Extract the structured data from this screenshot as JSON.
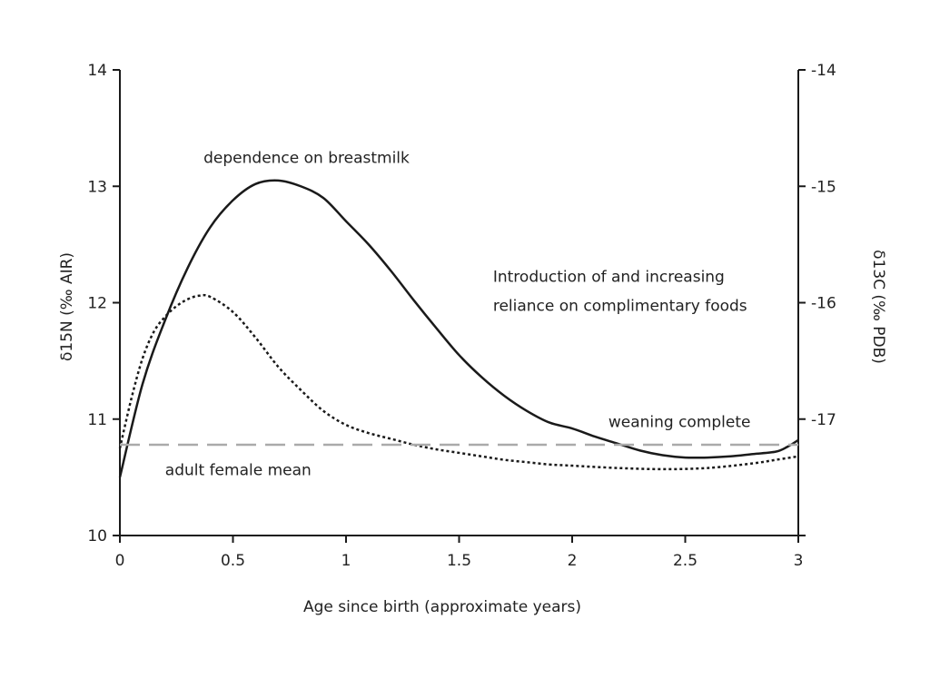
{
  "chart_data": {
    "type": "line",
    "title": "",
    "xlabel": "Age since birth (approximate years)",
    "ylabel_left": "δ15N (‰ AIR)",
    "ylabel_right": "δ13C (‰ PDB)",
    "xlim": [
      0,
      3
    ],
    "ylim_left": [
      10,
      14
    ],
    "ylim_right": [
      -18,
      -14
    ],
    "x_ticks": [
      "0",
      "0.5",
      "1",
      "1.5",
      "2",
      "2.5",
      "3"
    ],
    "y_left_ticks": [
      "10",
      "11",
      "12",
      "13",
      "14"
    ],
    "y_right_ticks": [
      "-17",
      "-16",
      "-15",
      "-14"
    ],
    "grid": false,
    "series": [
      {
        "style": "solid",
        "axis": "left",
        "color": "#1a1a1a",
        "x": [
          0,
          0.1,
          0.2,
          0.3,
          0.4,
          0.5,
          0.6,
          0.7,
          0.8,
          0.9,
          1.0,
          1.1,
          1.2,
          1.3,
          1.4,
          1.5,
          1.6,
          1.7,
          1.8,
          1.9,
          2.0,
          2.1,
          2.2,
          2.3,
          2.4,
          2.5,
          2.6,
          2.7,
          2.8,
          2.9,
          2.95,
          3.0
        ],
        "y": [
          10.5,
          11.3,
          11.85,
          12.3,
          12.65,
          12.88,
          13.02,
          13.05,
          13.0,
          12.9,
          12.7,
          12.5,
          12.27,
          12.02,
          11.78,
          11.55,
          11.36,
          11.2,
          11.07,
          10.97,
          10.92,
          10.85,
          10.79,
          10.73,
          10.69,
          10.67,
          10.67,
          10.68,
          10.7,
          10.72,
          10.76,
          10.82
        ]
      },
      {
        "style": "dotted",
        "axis": "right",
        "color": "#1a1a1a",
        "x": [
          0,
          0.05,
          0.1,
          0.15,
          0.2,
          0.25,
          0.3,
          0.35,
          0.4,
          0.5,
          0.6,
          0.7,
          0.8,
          0.9,
          1.0,
          1.1,
          1.2,
          1.3,
          1.4,
          1.5,
          1.6,
          1.7,
          1.8,
          1.9,
          2.0,
          2.2,
          2.4,
          2.6,
          2.8,
          2.9,
          3.0
        ],
        "y": [
          -17.25,
          -16.83,
          -16.48,
          -16.25,
          -16.12,
          -16.03,
          -15.97,
          -15.94,
          -15.95,
          -16.08,
          -16.3,
          -16.55,
          -16.75,
          -16.93,
          -17.05,
          -17.12,
          -17.17,
          -17.22,
          -17.26,
          -17.29,
          -17.32,
          -17.35,
          -17.37,
          -17.39,
          -17.4,
          -17.42,
          -17.43,
          -17.42,
          -17.38,
          -17.35,
          -17.32
        ]
      },
      {
        "style": "dashed",
        "axis": "left",
        "color": "#aaaaaa",
        "x": [
          0,
          3
        ],
        "y": [
          10.78,
          10.78
        ]
      }
    ],
    "annotations": [
      {
        "text": "dependence on breastmilk",
        "x": 0.37,
        "y": 13.2
      },
      {
        "text": "Introduction of and increasing",
        "x": 1.65,
        "y": 12.18
      },
      {
        "text": "reliance on complimentary foods",
        "x": 1.65,
        "y": 11.93
      },
      {
        "text": "weaning complete",
        "x": 2.16,
        "y": 10.93
      },
      {
        "text": "adult female mean",
        "x": 0.2,
        "y": 10.52
      }
    ]
  }
}
